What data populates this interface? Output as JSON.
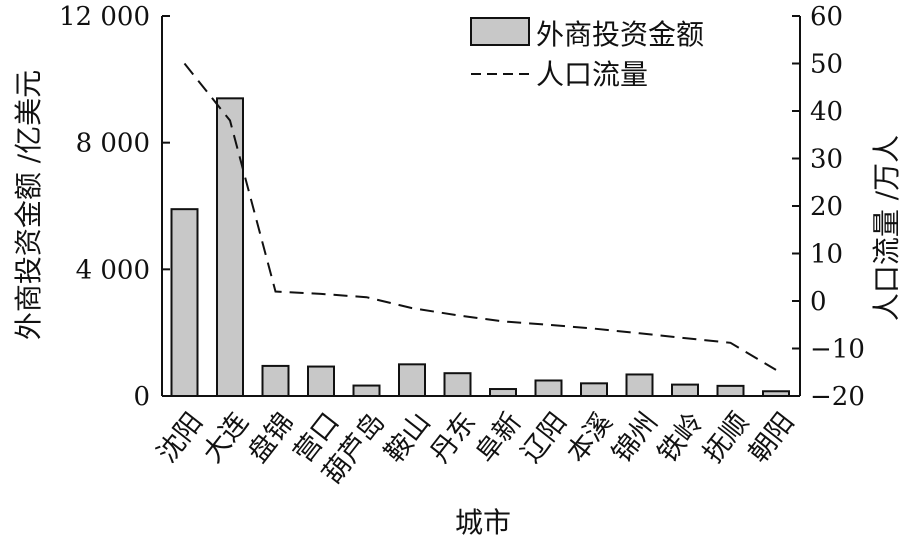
{
  "chart_data": {
    "type": "bar",
    "xlabel": "城市",
    "ylabel_left": "外商投资金额 /亿美元",
    "ylabel_right": "人口流量 /万人",
    "ylim_left": [
      0,
      12000
    ],
    "ylim_right": [
      -20,
      60
    ],
    "left_ticks": [
      "0",
      "4 000",
      "8 000",
      "12 000"
    ],
    "left_tick_values": [
      0,
      4000,
      8000,
      12000
    ],
    "right_ticks": [
      "−20",
      "−10",
      "0",
      "10",
      "20",
      "30",
      "40",
      "50",
      "60"
    ],
    "right_tick_values": [
      -20,
      -10,
      0,
      10,
      20,
      30,
      40,
      50,
      60
    ],
    "categories": [
      "沈阳",
      "大连",
      "盘锦",
      "营口",
      "葫芦岛",
      "鞍山",
      "丹东",
      "阜新",
      "辽阳",
      "本溪",
      "锦州",
      "铁岭",
      "抚顺",
      "朝阳"
    ],
    "legend_position": "top-right",
    "grid": false,
    "series": [
      {
        "name": "外商投资金额",
        "type": "bar",
        "axis": "left",
        "color": "#c8c8c8",
        "values": [
          5900,
          9400,
          950,
          930,
          330,
          1000,
          720,
          220,
          490,
          400,
          680,
          360,
          320,
          150
        ]
      },
      {
        "name": "人口流量",
        "type": "line",
        "axis": "right",
        "style": "dashed",
        "values": [
          50,
          38,
          2,
          1.5,
          0.8,
          -1.5,
          -3,
          -4.3,
          -5,
          -5.8,
          -6.8,
          -7.8,
          -8.8,
          -14.5
        ]
      }
    ]
  }
}
